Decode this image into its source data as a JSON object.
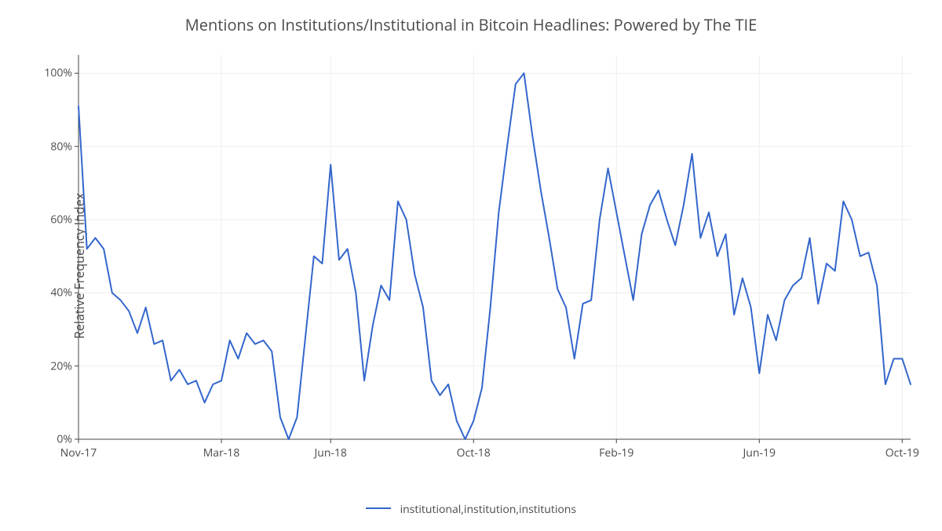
{
  "chart": {
    "type": "line",
    "title": "Mentions on Institutions/Institutional in Bitcoin Headlines: Powered by The TIE",
    "title_fontsize": 20,
    "ylabel": "Relative Frequency Index",
    "label_fontsize": 16,
    "background_color": "#ffffff",
    "plot_background_color": "#ffffff",
    "grid_color": "#eeeeee",
    "axis_color": "#444444",
    "tick_font_color": "#4a4a4a",
    "tick_fontsize": 14,
    "line_color": "#3366cc",
    "line_width": 2,
    "ylim": [
      0,
      105
    ],
    "yticks": [
      0,
      20,
      40,
      60,
      80,
      100
    ],
    "ytick_labels": [
      "0%",
      "20%",
      "40%",
      "60%",
      "80%",
      "100%"
    ],
    "x_index_range": [
      0,
      99
    ],
    "xticks_index": [
      0,
      17,
      30,
      47,
      64,
      81,
      98
    ],
    "xtick_labels": [
      "Nov-17",
      "Mar-18",
      "Jun-18",
      "Oct-18",
      "Feb-19",
      "Jun-19",
      "Oct-19"
    ],
    "legend_label": "institutional,institution,institutions",
    "series": [
      {
        "name": "institutional,institution,institutions",
        "color": "#3366cc",
        "values": [
          91,
          52,
          55,
          52,
          40,
          38,
          35,
          29,
          36,
          26,
          27,
          16,
          19,
          15,
          16,
          10,
          15,
          16,
          27,
          22,
          29,
          26,
          27,
          24,
          6,
          0,
          6,
          28,
          50,
          48,
          75,
          49,
          52,
          40,
          16,
          31,
          42,
          38,
          65,
          60,
          45,
          36,
          16,
          12,
          15,
          5,
          0,
          5,
          14,
          36,
          62,
          80,
          97,
          100,
          83,
          68,
          55,
          41,
          36,
          22,
          37,
          38,
          60,
          74,
          62,
          50,
          38,
          56,
          64,
          68,
          60,
          53,
          64,
          78,
          55,
          62,
          50,
          56,
          34,
          44,
          36,
          18,
          34,
          27,
          38,
          42,
          44,
          55,
          37,
          48,
          46,
          65,
          60,
          50,
          51,
          42,
          15,
          22,
          22,
          15
        ]
      }
    ]
  }
}
